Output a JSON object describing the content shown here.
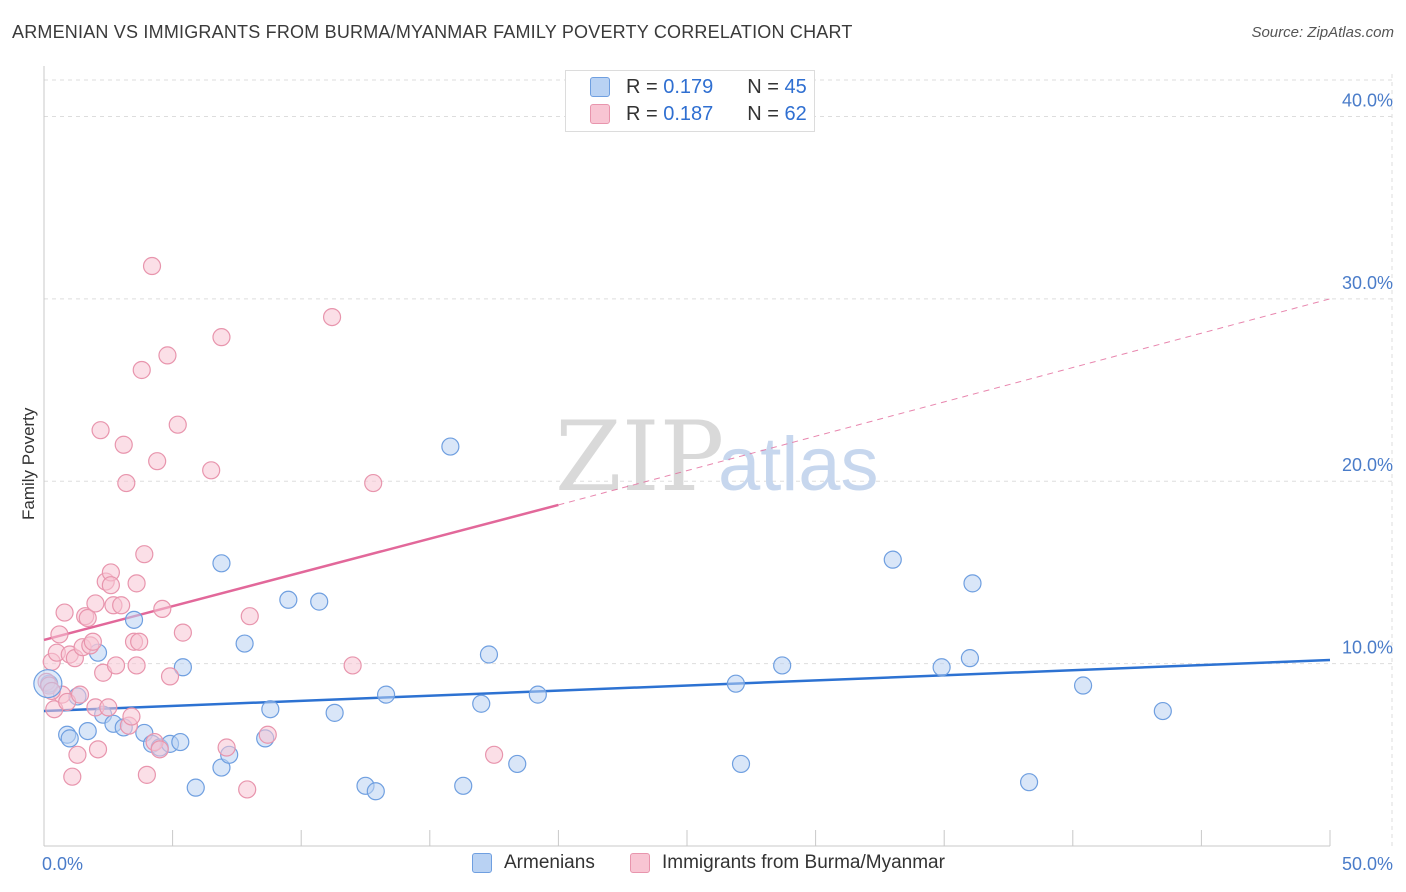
{
  "title": "ARMENIAN VS IMMIGRANTS FROM BURMA/MYANMAR FAMILY POVERTY CORRELATION CHART",
  "source": "Source: ZipAtlas.com",
  "watermark": {
    "zip": "ZIP",
    "atlas": "atlas"
  },
  "legend": {
    "armenians": {
      "r_label": "R =",
      "r_value": "0.179",
      "n_label": "N =",
      "n_value": "45"
    },
    "burma": {
      "r_label": "R =",
      "r_value": "0.187",
      "n_label": "N =",
      "n_value": "62"
    }
  },
  "bottom_legend": {
    "armenians": "Armenians",
    "burma": "Immigrants from Burma/Myanmar"
  },
  "colors": {
    "blue_fill": "#b9d2f3",
    "blue_stroke": "#6f9fe0",
    "blue_line": "#2d72d2",
    "pink_fill": "#f8c5d3",
    "pink_stroke": "#e895ad",
    "pink_line": "#e2689a",
    "grid": "#dddddd",
    "tick_text": "#4a7cc9"
  },
  "chart_data": {
    "type": "scatter",
    "title": "ARMENIAN VS IMMIGRANTS FROM BURMA/MYANMAR FAMILY POVERTY CORRELATION CHART",
    "xlabel": "",
    "ylabel": "Family Poverty",
    "xlim": [
      0,
      50
    ],
    "ylim": [
      0,
      42
    ],
    "x_ticks_labeled": [
      "0.0%",
      "50.0%"
    ],
    "y_ticks": [
      10,
      20,
      30,
      40
    ],
    "y_tick_labels": [
      "10.0%",
      "20.0%",
      "30.0%",
      "40.0%"
    ],
    "series": [
      {
        "name": "Armenians",
        "R": 0.179,
        "N": 45,
        "trend": {
          "x": [
            0,
            50
          ],
          "y": [
            7.4,
            10.2
          ],
          "style": "solid"
        },
        "points": [
          [
            0.2,
            8.9
          ],
          [
            0.9,
            6.1
          ],
          [
            1.0,
            5.9
          ],
          [
            1.3,
            8.2
          ],
          [
            1.7,
            6.3
          ],
          [
            2.1,
            10.6
          ],
          [
            2.3,
            7.2
          ],
          [
            2.7,
            6.7
          ],
          [
            3.1,
            6.5
          ],
          [
            3.5,
            12.4
          ],
          [
            3.9,
            6.2
          ],
          [
            4.2,
            5.6
          ],
          [
            4.5,
            5.4
          ],
          [
            4.9,
            5.6
          ],
          [
            5.3,
            5.7
          ],
          [
            5.4,
            9.8
          ],
          [
            5.9,
            3.2
          ],
          [
            6.9,
            4.3
          ],
          [
            6.9,
            15.5
          ],
          [
            7.2,
            5.0
          ],
          [
            7.8,
            11.1
          ],
          [
            8.6,
            5.9
          ],
          [
            8.8,
            7.5
          ],
          [
            9.5,
            13.5
          ],
          [
            10.7,
            13.4
          ],
          [
            11.3,
            7.3
          ],
          [
            12.5,
            3.3
          ],
          [
            12.9,
            3.0
          ],
          [
            13.3,
            8.3
          ],
          [
            15.8,
            21.9
          ],
          [
            16.3,
            3.3
          ],
          [
            17.0,
            7.8
          ],
          [
            17.3,
            10.5
          ],
          [
            18.4,
            4.5
          ],
          [
            19.2,
            8.3
          ],
          [
            26.9,
            8.9
          ],
          [
            27.1,
            4.5
          ],
          [
            28.7,
            9.9
          ],
          [
            33.0,
            15.7
          ],
          [
            34.9,
            9.8
          ],
          [
            36.0,
            10.3
          ],
          [
            36.1,
            14.4
          ],
          [
            38.3,
            3.5
          ],
          [
            40.4,
            8.8
          ],
          [
            43.5,
            7.4
          ]
        ]
      },
      {
        "name": "Immigrants from Burma/Myanmar",
        "R": 0.187,
        "N": 62,
        "trend": {
          "x": [
            0,
            20
          ],
          "y": [
            11.3,
            18.7
          ],
          "style": "solid",
          "extended": {
            "x": [
              20,
              50
            ],
            "y": [
              18.7,
              30.0
            ],
            "style": "dashed"
          }
        },
        "points": [
          [
            0.1,
            9.0
          ],
          [
            0.2,
            8.8
          ],
          [
            0.3,
            10.1
          ],
          [
            0.4,
            7.5
          ],
          [
            0.5,
            10.6
          ],
          [
            0.6,
            11.6
          ],
          [
            0.7,
            8.3
          ],
          [
            0.8,
            12.8
          ],
          [
            0.9,
            7.9
          ],
          [
            1.0,
            10.5
          ],
          [
            1.1,
            3.8
          ],
          [
            1.2,
            10.3
          ],
          [
            1.4,
            8.3
          ],
          [
            1.5,
            10.9
          ],
          [
            1.6,
            12.6
          ],
          [
            1.7,
            12.5
          ],
          [
            1.8,
            11.0
          ],
          [
            1.9,
            11.2
          ],
          [
            2.0,
            7.6
          ],
          [
            2.0,
            13.3
          ],
          [
            2.1,
            5.3
          ],
          [
            2.2,
            22.8
          ],
          [
            2.3,
            9.5
          ],
          [
            2.4,
            14.5
          ],
          [
            2.5,
            7.6
          ],
          [
            2.6,
            15.0
          ],
          [
            2.6,
            14.3
          ],
          [
            2.7,
            13.2
          ],
          [
            2.8,
            9.9
          ],
          [
            3.0,
            13.2
          ],
          [
            3.1,
            22.0
          ],
          [
            3.2,
            19.9
          ],
          [
            3.3,
            6.6
          ],
          [
            3.4,
            7.1
          ],
          [
            3.5,
            11.2
          ],
          [
            3.6,
            9.9
          ],
          [
            3.6,
            14.4
          ],
          [
            3.7,
            11.2
          ],
          [
            3.8,
            26.1
          ],
          [
            3.9,
            16.0
          ],
          [
            4.0,
            3.9
          ],
          [
            4.2,
            31.8
          ],
          [
            4.3,
            5.7
          ],
          [
            4.4,
            21.1
          ],
          [
            4.5,
            5.3
          ],
          [
            4.6,
            13.0
          ],
          [
            4.8,
            26.9
          ],
          [
            4.9,
            9.3
          ],
          [
            5.2,
            23.1
          ],
          [
            5.4,
            11.7
          ],
          [
            6.5,
            20.6
          ],
          [
            6.9,
            27.9
          ],
          [
            7.1,
            5.4
          ],
          [
            7.9,
            3.1
          ],
          [
            8.0,
            12.6
          ],
          [
            8.7,
            6.1
          ],
          [
            11.2,
            29.0
          ],
          [
            12.0,
            9.9
          ],
          [
            12.8,
            19.9
          ],
          [
            17.5,
            5.0
          ],
          [
            0.3,
            8.5
          ],
          [
            1.3,
            5.0
          ]
        ]
      }
    ]
  }
}
